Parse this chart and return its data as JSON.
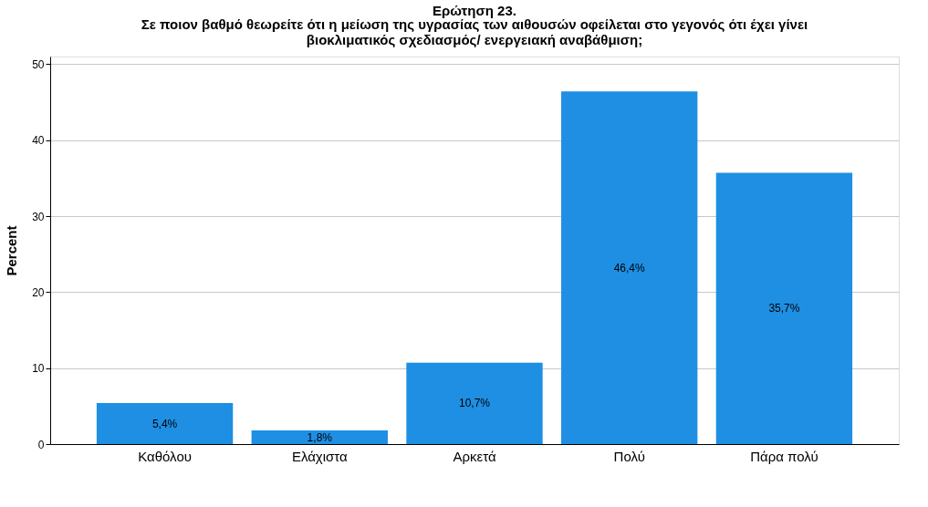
{
  "chart_data": {
    "type": "bar",
    "title": "Ερώτηση 23.",
    "subtitle": "Σε ποιον βαθμό θεωρείτε ότι η μείωση της υγρασίας των αιθουσών οφείλεται στο γεγονός ότι έχει γίνει βιοκλιματικός σχεδιασμός/ ενεργειακή αναβάθμιση;",
    "ylabel": "Percent",
    "categories": [
      "Καθόλου",
      "Ελάχιστα",
      "Αρκετά",
      "Πολύ",
      "Πάρα πολύ"
    ],
    "values": [
      5.4,
      1.8,
      10.7,
      46.4,
      35.7
    ],
    "value_labels": [
      "5,4%",
      "1,8%",
      "10,7%",
      "46,4%",
      "35,7%"
    ],
    "color": "#1e8fe3",
    "ylim": [
      0,
      51
    ],
    "yticks": [
      0,
      10,
      20,
      30,
      40,
      50
    ],
    "grid": "y"
  }
}
